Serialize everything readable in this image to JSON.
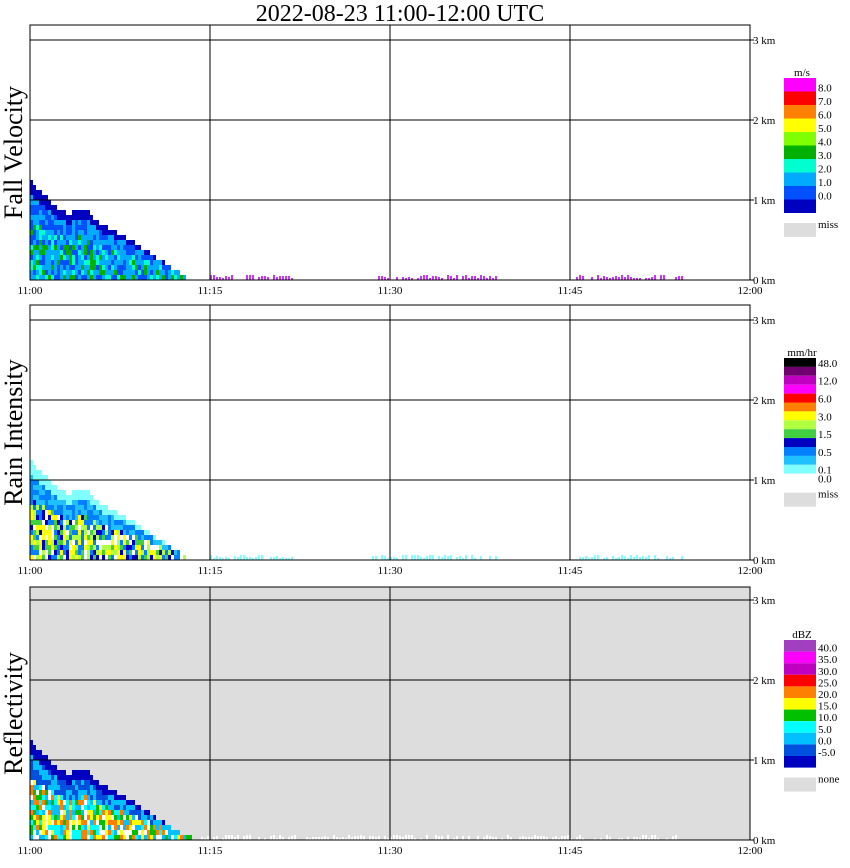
{
  "title": "2022-08-23  11:00-12:00 UTC",
  "chart_data": [
    {
      "type": "heatmap",
      "panel": "fall-velocity",
      "ylabel": "Fall Velocity",
      "x_ticks": [
        "11:00",
        "11:15",
        "11:30",
        "11:45",
        "12:00"
      ],
      "y_ticks": [
        "0 km",
        "1 km",
        "2 km",
        "3 km"
      ],
      "xlim": [
        "11:00",
        "12:00"
      ],
      "ylim_km": [
        0,
        3.2
      ],
      "background": "#ffffff",
      "colorbar": {
        "unit": "m/s",
        "levels": [
          {
            "label": "8.0",
            "color": "#ff00ff"
          },
          {
            "label": "7.0",
            "color": "#ff0000"
          },
          {
            "label": "6.0",
            "color": "#ff7f00"
          },
          {
            "label": "5.0",
            "color": "#ffff00"
          },
          {
            "label": "4.0",
            "color": "#7fff00"
          },
          {
            "label": "3.0",
            "color": "#00b000"
          },
          {
            "label": "2.0",
            "color": "#00ffd0"
          },
          {
            "label": "1.0",
            "color": "#00aaff"
          },
          {
            "label": "0.0",
            "color": "#0050ff"
          }
        ],
        "bottom_color": "#0000c0",
        "miss": {
          "label": "miss",
          "color": "#dddddd"
        }
      },
      "echo_top_km": [
        [
          0.0,
          1.2
        ],
        [
          1.0,
          1.05
        ],
        [
          2.0,
          0.9
        ],
        [
          3.0,
          0.8
        ],
        [
          4.5,
          0.85
        ],
        [
          6.0,
          0.65
        ],
        [
          8.0,
          0.5
        ],
        [
          10.0,
          0.3
        ],
        [
          11.5,
          0.15
        ],
        [
          12.5,
          0.05
        ],
        [
          13.0,
          0.0
        ]
      ],
      "scatter_segments_min": [
        [
          15.0,
          22.0
        ],
        [
          28.5,
          39.0
        ],
        [
          45.5,
          54.5
        ]
      ],
      "scatter_color": "#cc33ff"
    },
    {
      "type": "heatmap",
      "panel": "rain-intensity",
      "ylabel": "Rain Intensity",
      "x_ticks": [
        "11:00",
        "11:15",
        "11:30",
        "11:45",
        "12:00"
      ],
      "y_ticks": [
        "0 km",
        "1 km",
        "2 km",
        "3 km"
      ],
      "xlim": [
        "11:00",
        "12:00"
      ],
      "ylim_km": [
        0,
        3.2
      ],
      "background": "#ffffff",
      "colorbar": {
        "unit": "mm/hr",
        "levels": [
          {
            "label": "48.0",
            "color": "#000000"
          },
          {
            "label": "",
            "color": "#700070"
          },
          {
            "label": "12.0",
            "color": "#c000c0"
          },
          {
            "label": "",
            "color": "#ff00ff"
          },
          {
            "label": "6.0",
            "color": "#ff0000"
          },
          {
            "label": "",
            "color": "#ff8000"
          },
          {
            "label": "3.0",
            "color": "#ffff00"
          },
          {
            "label": "",
            "color": "#b0ff40"
          },
          {
            "label": "1.5",
            "color": "#40d040"
          },
          {
            "label": "",
            "color": "#0000c0"
          },
          {
            "label": "0.5",
            "color": "#0080ff"
          },
          {
            "label": "",
            "color": "#20c0ff"
          },
          {
            "label": "0.1",
            "color": "#80ffff"
          },
          {
            "label": "0.0",
            "color": "#ffffff"
          }
        ],
        "miss": {
          "label": "miss",
          "color": "#dddddd"
        }
      },
      "echo_top_km": [
        [
          0.0,
          1.2
        ],
        [
          1.0,
          1.05
        ],
        [
          2.0,
          0.9
        ],
        [
          3.0,
          0.8
        ],
        [
          4.5,
          0.85
        ],
        [
          6.0,
          0.65
        ],
        [
          8.0,
          0.5
        ],
        [
          10.0,
          0.3
        ],
        [
          11.5,
          0.15
        ],
        [
          12.5,
          0.05
        ],
        [
          13.0,
          0.0
        ]
      ],
      "scatter_segments_min": [
        [
          15.0,
          22.0
        ],
        [
          28.5,
          39.0
        ],
        [
          45.5,
          54.5
        ]
      ],
      "scatter_color": "#80ffff"
    },
    {
      "type": "heatmap",
      "panel": "reflectivity",
      "ylabel": "Reflectivity",
      "x_ticks": [
        "11:00",
        "11:15",
        "11:30",
        "11:45",
        "12:00"
      ],
      "y_ticks": [
        "0 km",
        "1 km",
        "2 km",
        "3 km"
      ],
      "xlim": [
        "11:00",
        "12:00"
      ],
      "ylim_km": [
        0,
        3.2
      ],
      "background": "#dddddd",
      "colorbar": {
        "unit": "dBZ",
        "levels": [
          {
            "label": "40.0",
            "color": "#a040c0"
          },
          {
            "label": "35.0",
            "color": "#ff00ff"
          },
          {
            "label": "30.0",
            "color": "#c000c0"
          },
          {
            "label": "25.0",
            "color": "#ff0000"
          },
          {
            "label": "20.0",
            "color": "#ff8000"
          },
          {
            "label": "15.0",
            "color": "#ffff00"
          },
          {
            "label": "10.0",
            "color": "#00c000"
          },
          {
            "label": "5.0",
            "color": "#00ffff"
          },
          {
            "label": "0.0",
            "color": "#00c0ff"
          },
          {
            "label": "-5.0",
            "color": "#0050e0"
          }
        ],
        "bottom_color": "#0000c0",
        "miss": {
          "label": "none",
          "color": "#dddddd"
        }
      },
      "echo_top_km": [
        [
          0.0,
          1.2
        ],
        [
          1.0,
          1.05
        ],
        [
          2.0,
          0.9
        ],
        [
          3.0,
          0.8
        ],
        [
          4.5,
          0.85
        ],
        [
          6.0,
          0.65
        ],
        [
          8.0,
          0.5
        ],
        [
          10.0,
          0.3
        ],
        [
          11.5,
          0.15
        ],
        [
          12.5,
          0.05
        ],
        [
          13.5,
          0.0
        ]
      ],
      "scatter_segments_min": [
        [
          14.0,
          54.0
        ]
      ],
      "scatter_color": "#ffffff"
    }
  ]
}
